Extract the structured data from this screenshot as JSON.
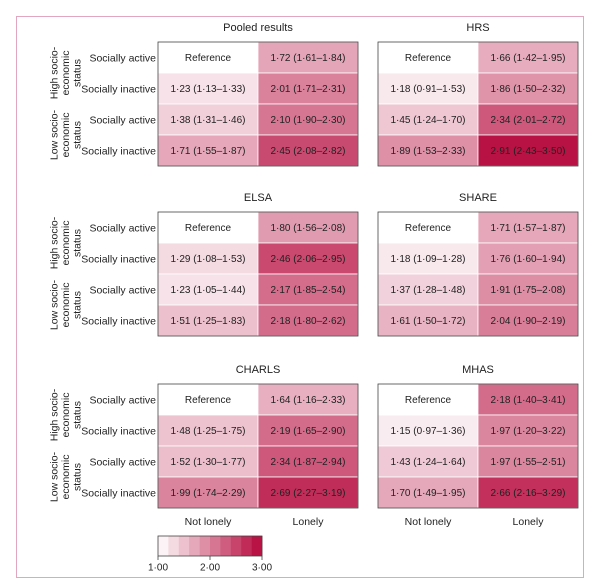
{
  "chart_data": {
    "type": "heatmap",
    "row_labels": [
      "Socially active",
      "Socially inactive",
      "Socially active",
      "Socially inactive"
    ],
    "group_labels": [
      "High socio-\neconomic\nstatus",
      "Low socio-\neconomic\nstatus"
    ],
    "column_labels": [
      "Not lonely",
      "Lonely"
    ],
    "panels": [
      {
        "title": "Pooled results",
        "cells": [
          [
            {
              "text": "Reference",
              "value": 1.0
            },
            {
              "text": "1·72 (1·61–1·84)",
              "value": 1.72
            }
          ],
          [
            {
              "text": "1·23 (1·13–1·33)",
              "value": 1.23
            },
            {
              "text": "2·01 (1·71–2·31)",
              "value": 2.01
            }
          ],
          [
            {
              "text": "1·38 (1·31–1·46)",
              "value": 1.38
            },
            {
              "text": "2·10 (1·90–2·30)",
              "value": 2.1
            }
          ],
          [
            {
              "text": "1·71 (1·55–1·87)",
              "value": 1.71
            },
            {
              "text": "2·45 (2·08–2·82)",
              "value": 2.45
            }
          ]
        ]
      },
      {
        "title": "HRS",
        "cells": [
          [
            {
              "text": "Reference",
              "value": 1.0
            },
            {
              "text": "1·66 (1·42–1·95)",
              "value": 1.66
            }
          ],
          [
            {
              "text": "1·18 (0·91–1·53)",
              "value": 1.18
            },
            {
              "text": "1·86 (1·50–2·32)",
              "value": 1.86
            }
          ],
          [
            {
              "text": "1·45 (1·24–1·70)",
              "value": 1.45
            },
            {
              "text": "2·34 (2·01–2·72)",
              "value": 2.34
            }
          ],
          [
            {
              "text": "1·89 (1·53–2·33)",
              "value": 1.89
            },
            {
              "text": "2·91 (2·43–3·50)",
              "value": 2.91
            }
          ]
        ]
      },
      {
        "title": "ELSA",
        "cells": [
          [
            {
              "text": "Reference",
              "value": 1.0
            },
            {
              "text": "1·80 (1·56–2·08)",
              "value": 1.8
            }
          ],
          [
            {
              "text": "1·29 (1·08–1·53)",
              "value": 1.29
            },
            {
              "text": "2·46 (2·06–2·95)",
              "value": 2.46
            }
          ],
          [
            {
              "text": "1·23 (1·05–1·44)",
              "value": 1.23
            },
            {
              "text": "2·17 (1·85–2·54)",
              "value": 2.17
            }
          ],
          [
            {
              "text": "1·51 (1·25–1·83)",
              "value": 1.51
            },
            {
              "text": "2·18 (1·80–2·62)",
              "value": 2.18
            }
          ]
        ]
      },
      {
        "title": "SHARE",
        "cells": [
          [
            {
              "text": "Reference",
              "value": 1.0
            },
            {
              "text": "1·71 (1·57–1·87)",
              "value": 1.71
            }
          ],
          [
            {
              "text": "1·18 (1·09–1·28)",
              "value": 1.18
            },
            {
              "text": "1·76 (1·60–1·94)",
              "value": 1.76
            }
          ],
          [
            {
              "text": "1·37 (1·28–1·48)",
              "value": 1.37
            },
            {
              "text": "1·91 (1·75–2·08)",
              "value": 1.91
            }
          ],
          [
            {
              "text": "1·61 (1·50–1·72)",
              "value": 1.61
            },
            {
              "text": "2·04 (1·90–2·19)",
              "value": 2.04
            }
          ]
        ]
      },
      {
        "title": "CHARLS",
        "cells": [
          [
            {
              "text": "Reference",
              "value": 1.0
            },
            {
              "text": "1·64 (1·16–2·33)",
              "value": 1.64
            }
          ],
          [
            {
              "text": "1·48 (1·25–1·75)",
              "value": 1.48
            },
            {
              "text": "2·19 (1·65–2·90)",
              "value": 2.19
            }
          ],
          [
            {
              "text": "1·52 (1·30–1·77)",
              "value": 1.52
            },
            {
              "text": "2·34 (1·87–2·94)",
              "value": 2.34
            }
          ],
          [
            {
              "text": "1·99 (1·74–2·29)",
              "value": 1.99
            },
            {
              "text": "2·69 (2·27–3·19)",
              "value": 2.69
            }
          ]
        ]
      },
      {
        "title": "MHAS",
        "cells": [
          [
            {
              "text": "Reference",
              "value": 1.0
            },
            {
              "text": "2·18 (1·40–3·41)",
              "value": 2.18
            }
          ],
          [
            {
              "text": "1·15 (0·97–1·36)",
              "value": 1.15
            },
            {
              "text": "1·97 (1·20–3·22)",
              "value": 1.97
            }
          ],
          [
            {
              "text": "1·43 (1·24–1·64)",
              "value": 1.43
            },
            {
              "text": "1·97 (1·55–2·51)",
              "value": 1.97
            }
          ],
          [
            {
              "text": "1·70 (1·49–1·95)",
              "value": 1.7
            },
            {
              "text": "2·66 (2·16–3·29)",
              "value": 2.66
            }
          ]
        ]
      }
    ],
    "colorscale": {
      "min": 1.0,
      "max": 3.0,
      "low_color": "#ffffff",
      "high_color": "#b5063a",
      "tick_labels": [
        "1·00",
        "2·00",
        "3·00"
      ],
      "tick_values": [
        1.0,
        2.0,
        3.0
      ],
      "steps": 10
    }
  }
}
